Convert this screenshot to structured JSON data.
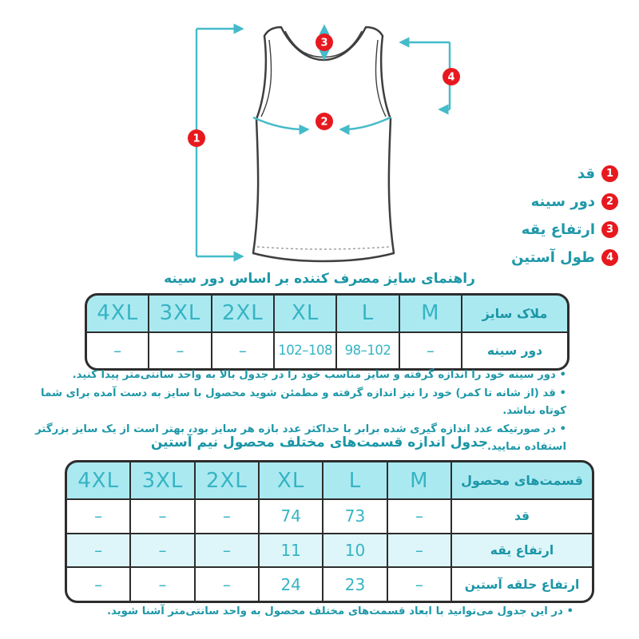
{
  "colors": {
    "teal_text": "#1e98a8",
    "teal_table": "#36b4c4",
    "teal_arrow": "#44bbc9",
    "red_marker": "#e7191f",
    "header_bg": "#abe9f1",
    "alt_row_bg": "#def6f9",
    "table_border": "#2d2d2d"
  },
  "diagram": {
    "markers": [
      "1",
      "2",
      "3",
      "4"
    ],
    "legend": [
      {
        "num": "1",
        "label": "قد"
      },
      {
        "num": "2",
        "label": "دور سینه"
      },
      {
        "num": "3",
        "label": "ارتفاع یقه"
      },
      {
        "num": "4",
        "label": "طول آستین"
      }
    ]
  },
  "section1": {
    "title": "راهنمای سایز مصرف کننده بر اساس دور سینه",
    "table": {
      "sizes": [
        "4XL",
        "3XL",
        "2XL",
        "XL",
        "L",
        "M"
      ],
      "header_label": "ملاک سایز",
      "rows": [
        {
          "label": "دور سینه",
          "values": [
            "–",
            "–",
            "–",
            "102–108",
            "98–102",
            "–"
          ]
        }
      ]
    },
    "notes": [
      "• دور سینه خود را اندازه گرفته و سایز مناسب خود را در جدول بالا به واحد سانتی‌متر پیدا کنید.",
      "• قد (از شانه تا کمر) خود را نیز اندازه گرفته و مطمئن شوید محصول با سایز به دست آمده برای شما کوتاه نباشد.",
      "• در صورتیکه عدد اندازه گیری شده برابر با حداکثر عدد بازه هر سایز بود، بهتر است از یک سایز بزرگتر استفاده نمایید."
    ]
  },
  "section2": {
    "title": "جدول اندازه قسمت‌های مختلف محصول نیم آستین",
    "table": {
      "sizes": [
        "4XL",
        "3XL",
        "2XL",
        "XL",
        "L",
        "M"
      ],
      "header_label": "قسمت‌های محصول",
      "rows": [
        {
          "label": "قد",
          "values": [
            "–",
            "–",
            "–",
            "74",
            "73",
            "–"
          ]
        },
        {
          "label": "ارتفاع یقه",
          "values": [
            "–",
            "–",
            "–",
            "11",
            "10",
            "–"
          ]
        },
        {
          "label": "ارتفاع حلقه آستین",
          "values": [
            "–",
            "–",
            "–",
            "24",
            "23",
            "–"
          ]
        }
      ]
    },
    "notes": [
      "• در این جدول می‌توانید با ابعاد قسمت‌های مختلف محصول به واحد سانتی‌متر آشنا شوید."
    ]
  }
}
